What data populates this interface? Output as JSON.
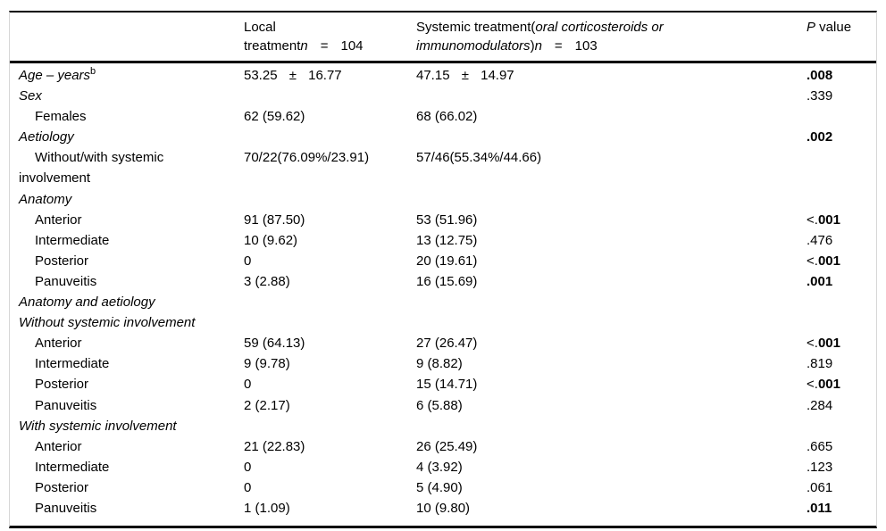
{
  "table": {
    "header": {
      "col2": {
        "line1": "Local",
        "pre": "treatment",
        "n": "n",
        "eq": "=",
        "count": "104"
      },
      "col3": {
        "pre": "Systemic treatment(",
        "italic1": "oral corticosteroids or",
        "italic2": "immunomodulators",
        "close": ")",
        "n": "n",
        "eq": "=",
        "count": "103"
      },
      "col4": {
        "p": "P",
        "rest": " value"
      }
    },
    "rows": [
      {
        "label": "Age – years",
        "sup": "b",
        "c1": "53.25 ± 16.77",
        "c2": "47.15 ± 14.97",
        "pn": "",
        "pb": ".008"
      },
      {
        "label": "Sex",
        "c1": "",
        "c2": "",
        "pn": ".339",
        "pb": ""
      },
      {
        "label": "Females",
        "c1": "62 (59.62)",
        "c2": "68 (66.02)",
        "pn": "",
        "pb": ""
      },
      {
        "label": "Aetiology",
        "c1": "",
        "c2": "",
        "pn": "",
        "pb": ".002"
      },
      {
        "label": "Without/with systemic involvement",
        "c1": "70/22(76.09%/23.91)",
        "c2": "57/46(55.34%/44.66)",
        "pn": "",
        "pb": ""
      },
      {
        "label": "Anatomy",
        "c1": "",
        "c2": "",
        "pn": "",
        "pb": ""
      },
      {
        "label": "Anterior",
        "c1": "91 (87.50)",
        "c2": "53 (51.96)",
        "pn": "<.",
        "pb": "001"
      },
      {
        "label": "Intermediate",
        "c1": "10 (9.62)",
        "c2": "13 (12.75)",
        "pn": ".476",
        "pb": ""
      },
      {
        "label": "Posterior",
        "c1": "0",
        "c2": "20 (19.61)",
        "pn": "<.",
        "pb": "001"
      },
      {
        "label": "Panuveitis",
        "c1": "3 (2.88)",
        "c2": "16 (15.69)",
        "pn": "",
        "pb": ".001"
      },
      {
        "label": "Anatomy and aetiology",
        "c1": "",
        "c2": "",
        "pn": "",
        "pb": ""
      },
      {
        "label": "Without systemic involvement",
        "c1": "",
        "c2": "",
        "pn": "",
        "pb": ""
      },
      {
        "label": "Anterior",
        "c1": "59 (64.13)",
        "c2": "27 (26.47)",
        "pn": "<.",
        "pb": "001"
      },
      {
        "label": "Intermediate",
        "c1": "9 (9.78)",
        "c2": "9 (8.82)",
        "pn": ".819",
        "pb": ""
      },
      {
        "label": "Posterior",
        "c1": "0",
        "c2": "15 (14.71)",
        "pn": "<.",
        "pb": "001"
      },
      {
        "label": "Panuveitis",
        "c1": "2 (2.17)",
        "c2": "6 (5.88)",
        "pn": ".284",
        "pb": ""
      },
      {
        "label": "With systemic involvement",
        "c1": "",
        "c2": "",
        "pn": "",
        "pb": ""
      },
      {
        "label": "Anterior",
        "c1": "21 (22.83)",
        "c2": "26 (25.49)",
        "pn": ".665",
        "pb": ""
      },
      {
        "label": "Intermediate",
        "c1": "0",
        "c2": "4 (3.92)",
        "pn": ".123",
        "pb": ""
      },
      {
        "label": "Posterior",
        "c1": "0",
        "c2": "5 (4.90)",
        "pn": ".061",
        "pb": ""
      },
      {
        "label": "Panuveitis",
        "c1": "1 (1.09)",
        "c2": "10 (9.80)",
        "pn": "",
        "pb": ".011"
      }
    ]
  }
}
